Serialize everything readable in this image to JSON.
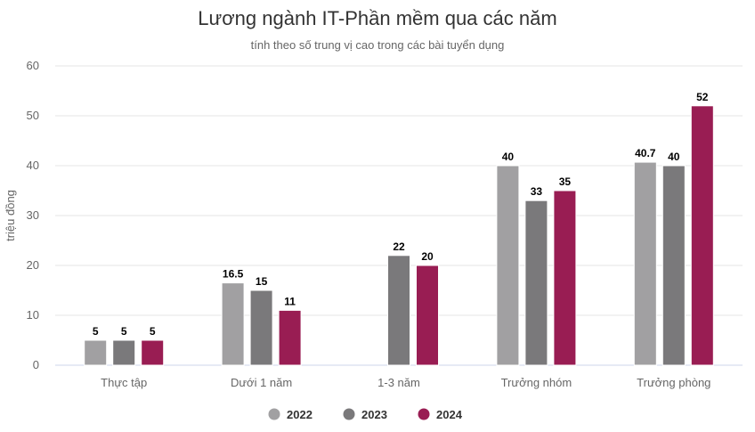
{
  "chart_data": {
    "type": "bar",
    "title": "Lương ngành IT-Phần mềm qua các năm",
    "subtitle": "tính theo số trung vị cao trong các bài tuyển dụng",
    "ylabel": "triệu đồng",
    "xlabel": "",
    "ylim": [
      0,
      60
    ],
    "yticks": [
      0,
      10,
      20,
      30,
      40,
      50,
      60
    ],
    "grid": true,
    "legend_position": "bottom-center",
    "categories": [
      "Thực tập",
      "Dưới 1 năm",
      "1-3 năm",
      "Trưởng nhóm",
      "Trưởng phòng"
    ],
    "series": [
      {
        "name": "2022",
        "color": "#a1a0a2",
        "values": [
          5,
          16.5,
          null,
          40,
          40.7
        ]
      },
      {
        "name": "2023",
        "color": "#7a797b",
        "values": [
          5,
          15,
          22,
          33,
          40
        ]
      },
      {
        "name": "2024",
        "color": "#991d53",
        "values": [
          5,
          11,
          20,
          35,
          52
        ]
      }
    ]
  }
}
